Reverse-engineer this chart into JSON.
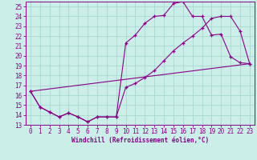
{
  "title": "",
  "xlabel": "Windchill (Refroidissement éolien,°C)",
  "bg_color": "#cceee8",
  "grid_color": "#aad8d2",
  "line_color": "#880088",
  "xlim": [
    -0.5,
    23.5
  ],
  "ylim": [
    13,
    25.5
  ],
  "xticks": [
    0,
    1,
    2,
    3,
    4,
    5,
    6,
    7,
    8,
    9,
    10,
    11,
    12,
    13,
    14,
    15,
    16,
    17,
    18,
    19,
    20,
    21,
    22,
    23
  ],
  "yticks": [
    13,
    14,
    15,
    16,
    17,
    18,
    19,
    20,
    21,
    22,
    23,
    24,
    25
  ],
  "line1_x": [
    0,
    1,
    2,
    3,
    4,
    5,
    6,
    7,
    8,
    9,
    10,
    11,
    12,
    13,
    14,
    15,
    16,
    17,
    18,
    19,
    20,
    21,
    22,
    23
  ],
  "line1_y": [
    16.4,
    14.8,
    14.3,
    13.8,
    14.2,
    13.8,
    13.3,
    13.8,
    13.8,
    13.8,
    21.3,
    22.1,
    23.3,
    24.0,
    24.1,
    25.3,
    25.5,
    24.0,
    24.0,
    22.1,
    22.2,
    19.9,
    19.3,
    19.2
  ],
  "line2_x": [
    0,
    1,
    2,
    3,
    4,
    5,
    6,
    7,
    8,
    9,
    10,
    11,
    12,
    13,
    14,
    15,
    16,
    17,
    18,
    19,
    20,
    21,
    22,
    23
  ],
  "line2_y": [
    16.4,
    14.8,
    14.3,
    13.8,
    14.2,
    13.8,
    13.3,
    13.8,
    13.8,
    13.8,
    16.8,
    17.2,
    17.8,
    18.5,
    19.5,
    20.5,
    21.3,
    22.0,
    22.8,
    23.8,
    24.0,
    24.0,
    22.5,
    19.2
  ],
  "line3_x": [
    0,
    23
  ],
  "line3_y": [
    16.4,
    19.2
  ],
  "tick_fontsize": 5.5,
  "xlabel_fontsize": 5.5
}
